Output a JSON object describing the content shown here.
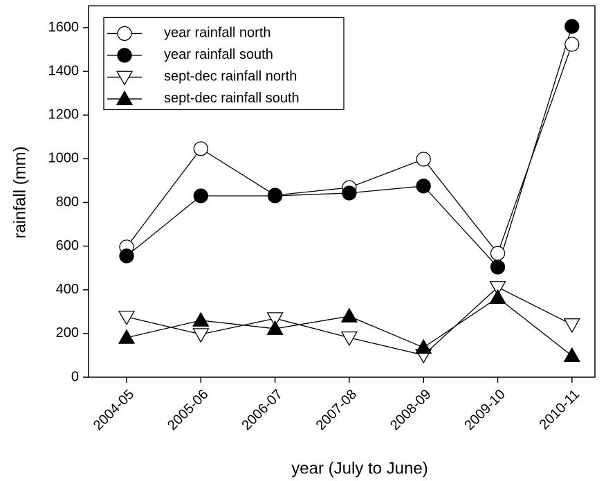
{
  "chart_data": {
    "type": "line",
    "x_label": "year (July to June)",
    "y_label": "rainfall (mm)",
    "categories": [
      "2004-05",
      "2005-06",
      "2006-07",
      "2007-08",
      "2008-09",
      "2009-10",
      "2010-11"
    ],
    "ylim": [
      0,
      1700
    ],
    "yticks": [
      0,
      200,
      400,
      600,
      800,
      1000,
      1200,
      1400,
      1600
    ],
    "legend": "top-left",
    "series": [
      {
        "name": "year rainfall north",
        "color": "#000000",
        "marker": "circle",
        "filled": false,
        "values": [
          596,
          1046,
          833,
          868,
          998,
          567,
          1524
        ]
      },
      {
        "name": "year rainfall south",
        "color": "#000000",
        "marker": "circle",
        "filled": true,
        "values": [
          555,
          830,
          830,
          843,
          875,
          504,
          1606
        ]
      },
      {
        "name": "sept-dec rainfall north",
        "color": "#000000",
        "marker": "triangle-down",
        "filled": false,
        "values": [
          276,
          196,
          269,
          181,
          101,
          412,
          241
        ]
      },
      {
        "name": "sept-dec rainfall south",
        "color": "#000000",
        "marker": "triangle-up",
        "filled": true,
        "values": [
          181,
          260,
          222,
          279,
          136,
          364,
          98
        ]
      }
    ]
  }
}
